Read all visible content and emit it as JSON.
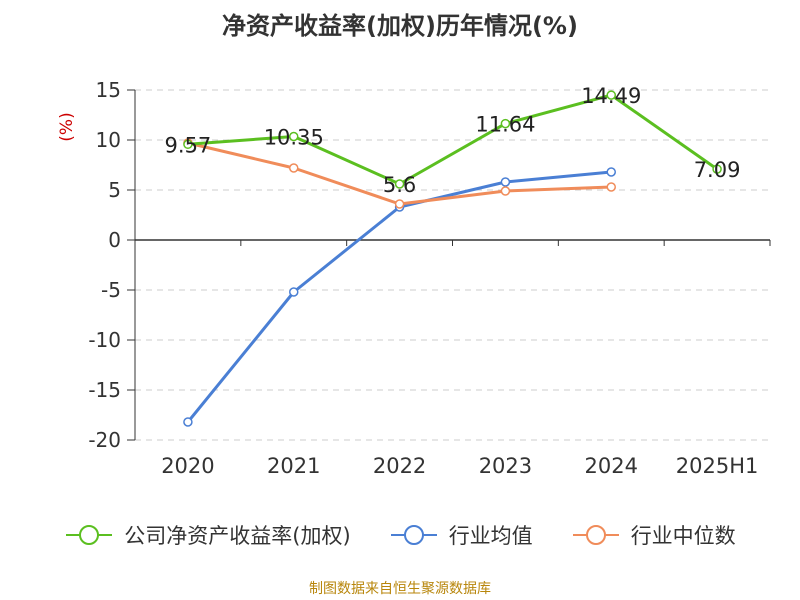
{
  "title": "净资产收益率(加权)历年情况(%)",
  "source": "制图数据来自恒生聚源数据库",
  "chart_data": {
    "type": "line",
    "title": "净资产收益率(加权)历年情况(%)",
    "ylabel": "(%)",
    "xlabel": "",
    "categories": [
      "2020",
      "2021",
      "2022",
      "2023",
      "2024",
      "2025H1"
    ],
    "ylim": [
      -20,
      15
    ],
    "yticks": [
      15,
      10,
      5,
      0,
      -5,
      -10,
      -15,
      -20
    ],
    "ytick_labels": [
      "15",
      "10",
      "5",
      "0",
      "-5",
      "-10",
      "-15",
      "-20"
    ],
    "grid": "horizontal dashed",
    "legend_position": "bottom",
    "series": [
      {
        "name": "公司净资产收益率(加权)",
        "color": "#5bbf20",
        "values": [
          9.57,
          10.35,
          5.6,
          11.64,
          14.49,
          7.09
        ],
        "labels": [
          "9.57",
          "10.35",
          "5.6",
          "11.64",
          "14.49",
          "7.09"
        ]
      },
      {
        "name": "行业均值",
        "color": "#4a7fd4",
        "values": [
          -18.2,
          -5.2,
          3.3,
          5.8,
          6.8,
          null
        ]
      },
      {
        "name": "行业中位数",
        "color": "#f08c5a",
        "values": [
          9.7,
          7.2,
          3.6,
          4.9,
          5.3,
          null
        ]
      }
    ]
  }
}
